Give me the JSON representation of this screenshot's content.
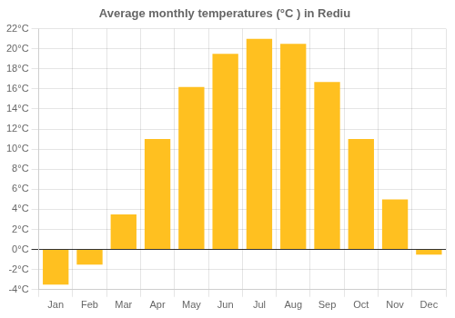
{
  "chart_data": {
    "type": "bar",
    "title": "Average monthly temperatures (°C ) in Rediu",
    "categories": [
      "Jan",
      "Feb",
      "Mar",
      "Apr",
      "May",
      "Jun",
      "Jul",
      "Aug",
      "Sep",
      "Oct",
      "Nov",
      "Dec"
    ],
    "values": [
      -3.5,
      -1.5,
      3.5,
      11.0,
      16.2,
      19.5,
      21.0,
      20.5,
      16.7,
      11.0,
      5.0,
      -0.5
    ],
    "color": "#FFC020",
    "ylim": [
      -4,
      22
    ],
    "yticks": [
      {
        "value": -4,
        "label": "-4°C"
      },
      {
        "value": -2,
        "label": "-2°C"
      },
      {
        "value": 0,
        "label": "0°C"
      },
      {
        "value": 2,
        "label": "2°C"
      },
      {
        "value": 4,
        "label": "4°C"
      },
      {
        "value": 6,
        "label": "6°C"
      },
      {
        "value": 8,
        "label": "8°C"
      },
      {
        "value": 10,
        "label": "10°C"
      },
      {
        "value": 12,
        "label": "12°C"
      },
      {
        "value": 14,
        "label": "14°C"
      },
      {
        "value": 16,
        "label": "16°C"
      },
      {
        "value": 18,
        "label": "18°C"
      },
      {
        "value": 20,
        "label": "20°C"
      },
      {
        "value": 22,
        "label": "22°C"
      }
    ],
    "grid": true
  }
}
